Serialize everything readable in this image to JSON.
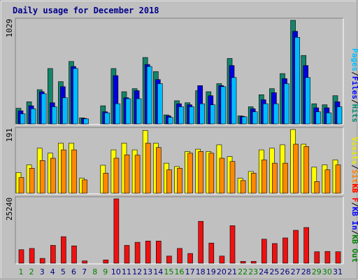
{
  "chart_data": [
    {
      "type": "bar",
      "title": "Daily usage for December 2018",
      "ymax_label": "1029",
      "ylim": [
        0,
        1029
      ],
      "categories": [
        "1",
        "2",
        "3",
        "4",
        "5",
        "6",
        "7",
        "8",
        "9",
        "10",
        "11",
        "12",
        "13",
        "14",
        "15",
        "16",
        "17",
        "18",
        "19",
        "20",
        "21",
        "22",
        "23",
        "24",
        "25",
        "26",
        "27",
        "28",
        "29",
        "30",
        "31"
      ],
      "weekend_days": [
        "1",
        "2",
        "8",
        "9",
        "15",
        "16",
        "22",
        "23",
        "29",
        "30"
      ],
      "legend": [
        "Pages",
        "/",
        "Files",
        "/",
        "Hits"
      ],
      "legend_colors": [
        "#00bfff",
        "#000000",
        "#0000ff",
        "#000000",
        "#008b6f"
      ],
      "series": [
        {
          "name": "Hits",
          "color": "#14846a",
          "values": [
            155,
            220,
            340,
            550,
            420,
            620,
            60,
            0,
            180,
            550,
            320,
            350,
            660,
            520,
            90,
            230,
            210,
            330,
            320,
            400,
            650,
            80,
            170,
            290,
            350,
            500,
            1029,
            680,
            200,
            190,
            280
          ]
        },
        {
          "name": "Files",
          "color": "#0000dd",
          "values": [
            130,
            180,
            320,
            210,
            370,
            570,
            55,
            0,
            120,
            480,
            260,
            330,
            590,
            440,
            80,
            200,
            190,
            380,
            280,
            380,
            580,
            75,
            150,
            240,
            310,
            450,
            920,
            580,
            160,
            160,
            220
          ]
        },
        {
          "name": "Pages",
          "color": "#00bbff",
          "values": [
            100,
            150,
            300,
            170,
            260,
            550,
            50,
            0,
            110,
            200,
            250,
            250,
            570,
            400,
            65,
            170,
            170,
            200,
            190,
            370,
            460,
            70,
            120,
            200,
            200,
            400,
            860,
            460,
            120,
            110,
            170
          ]
        }
      ]
    },
    {
      "type": "bar",
      "ymax_label": "191",
      "ylim": [
        0,
        191
      ],
      "legend": [
        "Visits",
        "/",
        "Sites"
      ],
      "legend_colors": [
        "#e8e800",
        "#000000",
        "#ff8000"
      ],
      "series": [
        {
          "name": "Visits",
          "color": "#ffff00",
          "values": [
            62,
            85,
            135,
            120,
            150,
            150,
            45,
            0,
            84,
            130,
            150,
            130,
            188,
            150,
            90,
            80,
            125,
            132,
            125,
            145,
            110,
            45,
            65,
            130,
            135,
            145,
            191,
            147,
            78,
            85,
            100
          ]
        },
        {
          "name": "Sites",
          "color": "#ff8800",
          "values": [
            47,
            75,
            98,
            105,
            130,
            130,
            40,
            0,
            60,
            105,
            115,
            114,
            150,
            137,
            70,
            75,
            120,
            125,
            120,
            105,
            95,
            38,
            60,
            100,
            90,
            90,
            147,
            140,
            35,
            70,
            85
          ]
        }
      ]
    },
    {
      "type": "bar",
      "ymax_label": "25240",
      "ylim": [
        0,
        25240
      ],
      "legend": [
        "KB F",
        "/",
        "KB In",
        "/",
        "KB Out"
      ],
      "legend_colors": [
        "#ff0000",
        "#000000",
        "#0000ff",
        "#000000",
        "#008000"
      ],
      "series": [
        {
          "name": "KB F",
          "color": "#ee1111",
          "values": [
            5300,
            5800,
            1900,
            7000,
            10400,
            6800,
            900,
            0,
            1300,
            25240,
            7000,
            8200,
            8700,
            8700,
            2800,
            5800,
            3800,
            16400,
            7900,
            2800,
            14700,
            700,
            700,
            9400,
            7700,
            9900,
            12900,
            14000,
            4500,
            4600,
            4500
          ]
        }
      ]
    }
  ]
}
